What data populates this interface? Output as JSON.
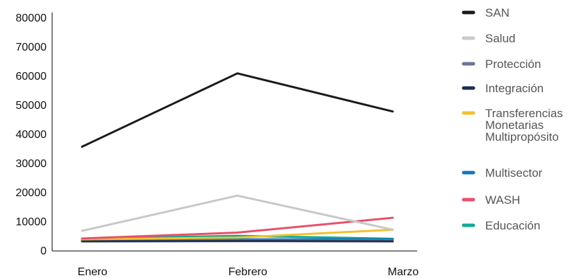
{
  "chart_data": {
    "type": "line",
    "title": "",
    "xlabel": "",
    "ylabel": "",
    "ylim": [
      0,
      80000
    ],
    "yticks": [
      0,
      10000,
      20000,
      30000,
      40000,
      50000,
      60000,
      70000,
      80000
    ],
    "grid": false,
    "legend_position": "right",
    "categories": [
      "Enero",
      "Febrero",
      "Marzo"
    ],
    "series": [
      {
        "name": "Educación",
        "color": "#13a895",
        "values": [
          4200,
          5200,
          4200
        ]
      },
      {
        "name": "Multisector",
        "color": "#1177b8",
        "values": [
          3800,
          4000,
          4000
        ]
      },
      {
        "name": "Protección",
        "color": "#6b7591",
        "values": [
          3700,
          3700,
          3700
        ]
      },
      {
        "name": "Integración",
        "color": "#1c2d4f",
        "values": [
          3300,
          3400,
          3300
        ]
      },
      {
        "name": "Transferencias Monetarias Multipropósito",
        "color": "#f2c12e",
        "values": [
          4000,
          4600,
          7300
        ]
      },
      {
        "name": "WASH",
        "color": "#e8506a",
        "values": [
          4300,
          6300,
          11400
        ]
      },
      {
        "name": "Salud",
        "color": "#c8c8c8",
        "values": [
          6900,
          19000,
          7300
        ]
      },
      {
        "name": "SAN",
        "color": "#1a1a1a",
        "values": [
          35800,
          61000,
          47900
        ]
      }
    ],
    "legend": [
      {
        "lines": [
          "SAN"
        ],
        "color": "#1a1a1a"
      },
      {
        "lines": [
          "Salud"
        ],
        "color": "#c8c8c8"
      },
      {
        "lines": [
          "Protección"
        ],
        "color": "#6b7591"
      },
      {
        "lines": [
          "Integración"
        ],
        "color": "#1c2d4f"
      },
      {
        "lines": [
          "Transferencias",
          "Monetarias",
          "Multipropósito"
        ],
        "color": "#f2c12e"
      },
      {
        "lines": [
          "Multisector"
        ],
        "color": "#1177b8"
      },
      {
        "lines": [
          "WASH"
        ],
        "color": "#e8506a"
      },
      {
        "lines": [
          "Educación"
        ],
        "color": "#13a895"
      }
    ]
  }
}
